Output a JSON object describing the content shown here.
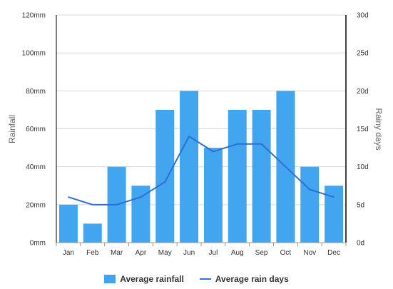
{
  "colors": {
    "bar": "#42a5f0",
    "line": "#2d6fd6",
    "grid": "#d8d8d8",
    "axis": "#000000"
  },
  "chart_data": {
    "type": "bar",
    "title": "",
    "categories": [
      "Jan",
      "Feb",
      "Mar",
      "Apr",
      "May",
      "Jun",
      "Jul",
      "Aug",
      "Sep",
      "Oct",
      "Nov",
      "Dec"
    ],
    "series": [
      {
        "name": "Average rainfall",
        "kind": "bar",
        "axis": "left",
        "values": [
          20,
          10,
          40,
          30,
          70,
          80,
          50,
          70,
          70,
          80,
          40,
          30
        ]
      },
      {
        "name": "Average rain days",
        "kind": "line",
        "axis": "right",
        "values": [
          6,
          5,
          5,
          6,
          8,
          14,
          12,
          13,
          13,
          10,
          7,
          6
        ]
      }
    ],
    "ylabel": "Rainfall",
    "y2label": "Rainy days",
    "ylim": [
      0,
      120
    ],
    "y2lim": [
      0,
      30
    ],
    "yticks": [
      "0mm",
      "20mm",
      "40mm",
      "60mm",
      "80mm",
      "100mm",
      "120mm"
    ],
    "y2ticks": [
      "0d",
      "5d",
      "10d",
      "15d",
      "20d",
      "25d",
      "30d"
    ],
    "grid": true,
    "legend_position": "bottom"
  }
}
